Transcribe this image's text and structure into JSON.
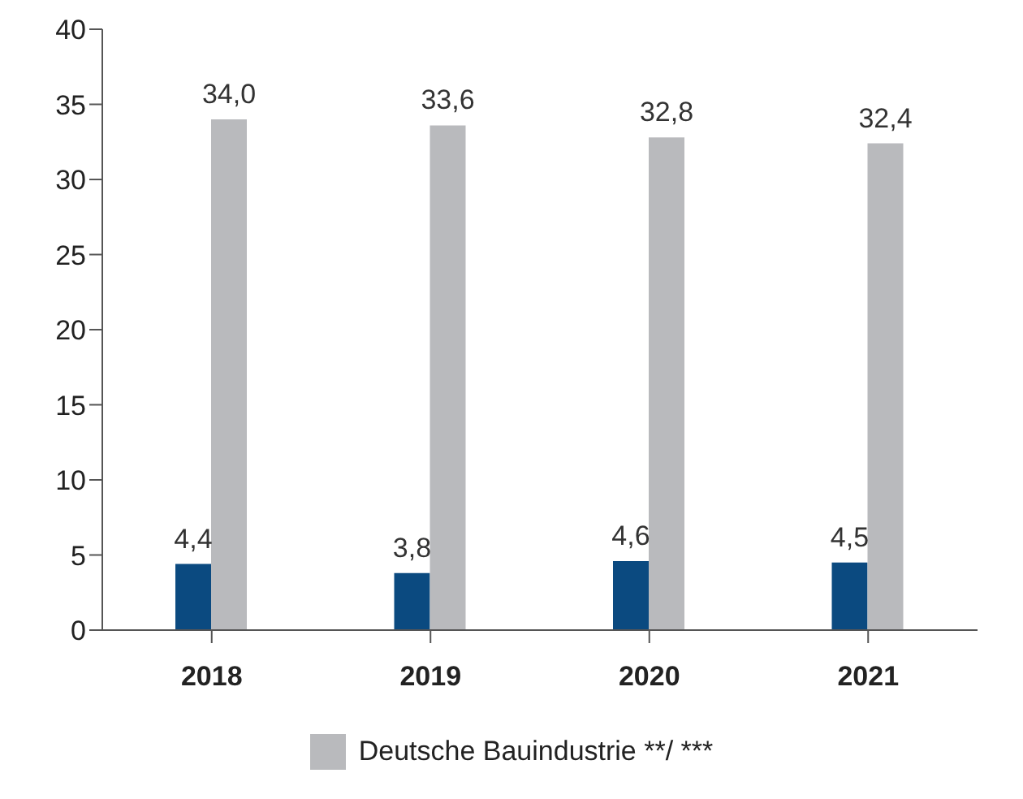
{
  "chart_data": {
    "type": "bar",
    "categories": [
      "2018",
      "2019",
      "2020",
      "2021"
    ],
    "series": [
      {
        "color": "#0b4a80",
        "values": [
          4.4,
          3.8,
          4.6,
          4.5
        ],
        "value_labels": [
          "4,4",
          "3,8",
          "4,6",
          "4,5"
        ]
      },
      {
        "name": "Deutsche Bauindustrie **/ ***",
        "color": "#b9babd",
        "values": [
          34.0,
          33.6,
          32.8,
          32.4
        ],
        "value_labels": [
          "34,0",
          "33,6",
          "32,8",
          "32,4"
        ]
      }
    ],
    "ylim": [
      0,
      40
    ],
    "yticks": [
      0,
      5,
      10,
      15,
      20,
      25,
      30,
      35,
      40
    ],
    "grid": false,
    "legend": "bottom"
  }
}
